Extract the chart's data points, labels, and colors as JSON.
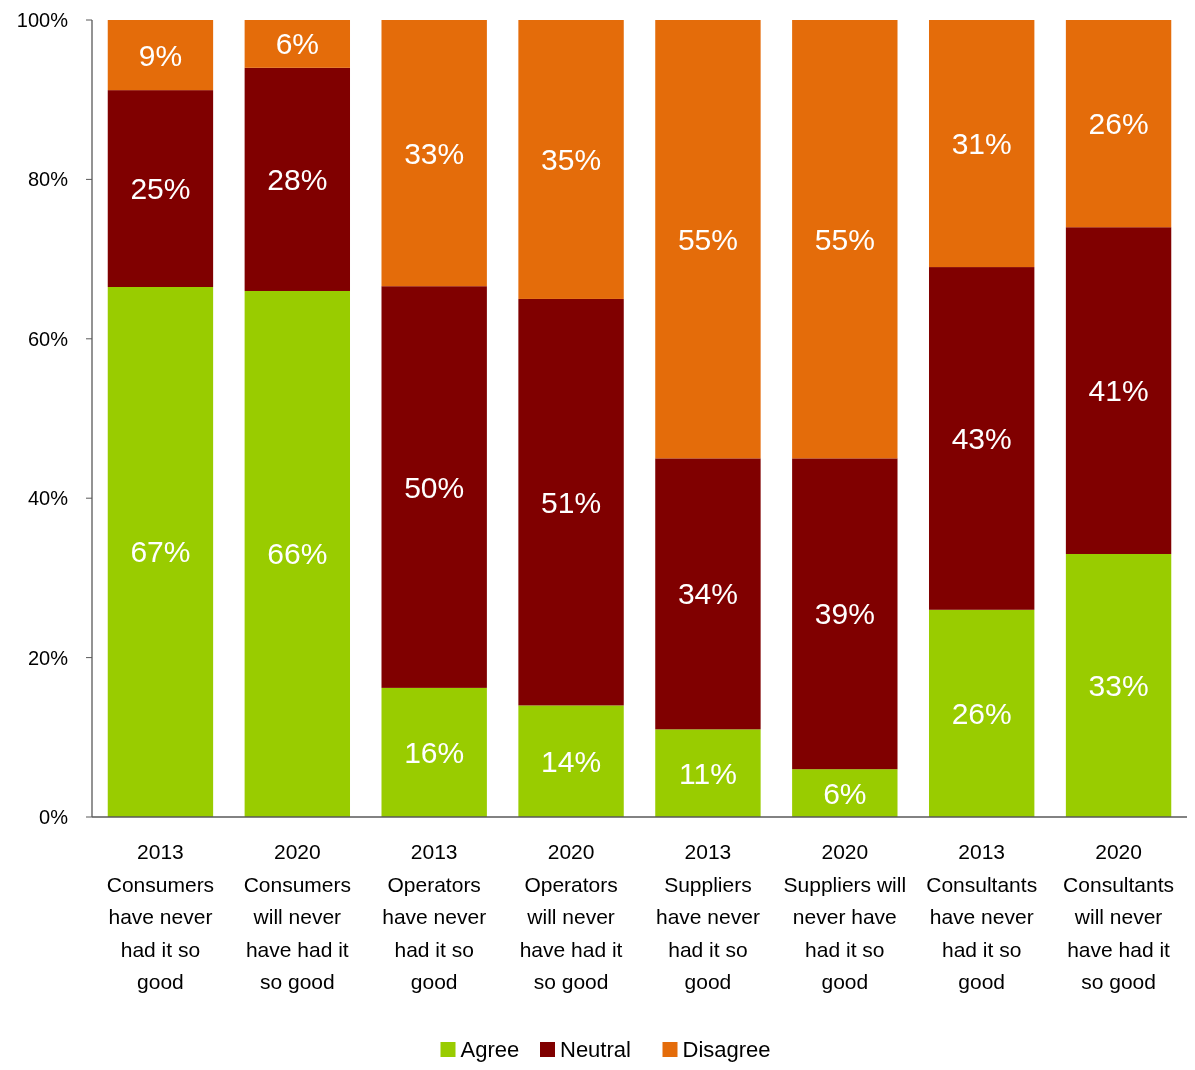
{
  "chart_data": {
    "type": "bar",
    "stacked": true,
    "categories": [
      "2013 Consumers have never had it so good",
      "2020 Consumers will never have had it so good",
      "2013 Operators have never had it so good",
      "2020 Operators will never have had it so good",
      "2013 Suppliers have never had it so good",
      "2020 Suppliers will never have had it so good",
      "2013 Consultants have never had it so good",
      "2020 Consultants will never have had it so good"
    ],
    "series": [
      {
        "name": "Agree",
        "color": "#99cc00",
        "values": [
          66.5,
          66,
          16.2,
          14,
          11,
          6,
          26,
          33
        ],
        "value_labels": [
          "67%",
          "66%",
          "16%",
          "14%",
          "11%",
          "6%",
          "26%",
          "33%"
        ]
      },
      {
        "name": "Neutral",
        "color": "#800000",
        "values": [
          24.7,
          28,
          50.4,
          51,
          34,
          39,
          43,
          41
        ],
        "value_labels": [
          "25%",
          "28%",
          "50%",
          "51%",
          "34%",
          "39%",
          "43%",
          "41%"
        ]
      },
      {
        "name": "Disagree",
        "color": "#e46c0a",
        "values": [
          8.8,
          6,
          33.4,
          35,
          55,
          55,
          31,
          26
        ],
        "value_labels": [
          "9%",
          "6%",
          "33%",
          "35%",
          "55%",
          "55%",
          "31%",
          "26%"
        ]
      }
    ],
    "ylim": [
      0,
      100
    ],
    "yticks": [
      {
        "value": 0,
        "label": "0%"
      },
      {
        "value": 20,
        "label": "20%"
      },
      {
        "value": 40,
        "label": "40%"
      },
      {
        "value": 60,
        "label": "60%"
      },
      {
        "value": 80,
        "label": "80%"
      },
      {
        "value": 100,
        "label": "100%"
      }
    ],
    "grid": false,
    "legend": "bottom"
  }
}
